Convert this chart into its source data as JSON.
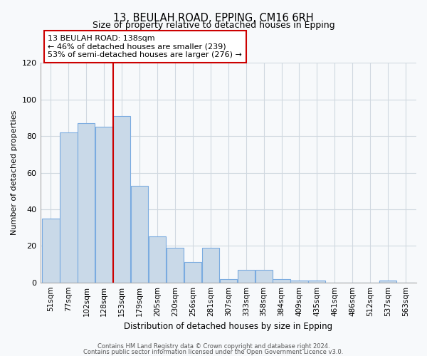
{
  "title": "13, BEULAH ROAD, EPPING, CM16 6RH",
  "subtitle": "Size of property relative to detached houses in Epping",
  "xlabel": "Distribution of detached houses by size in Epping",
  "ylabel": "Number of detached properties",
  "bar_labels": [
    "51sqm",
    "77sqm",
    "102sqm",
    "128sqm",
    "153sqm",
    "179sqm",
    "205sqm",
    "230sqm",
    "256sqm",
    "281sqm",
    "307sqm",
    "333sqm",
    "358sqm",
    "384sqm",
    "409sqm",
    "435sqm",
    "461sqm",
    "486sqm",
    "512sqm",
    "537sqm",
    "563sqm"
  ],
  "bar_heights": [
    35,
    82,
    87,
    85,
    91,
    53,
    25,
    19,
    11,
    19,
    2,
    7,
    7,
    2,
    1,
    1,
    0,
    0,
    0,
    1,
    0
  ],
  "bar_color": "#c9d9e8",
  "bar_edge_color": "#7aabe0",
  "vline_x": 3.5,
  "vline_color": "#cc0000",
  "annotation_title": "13 BEULAH ROAD: 138sqm",
  "annotation_line1": "← 46% of detached houses are smaller (239)",
  "annotation_line2": "53% of semi-detached houses are larger (276) →",
  "ylim": [
    0,
    120
  ],
  "yticks": [
    0,
    20,
    40,
    60,
    80,
    100,
    120
  ],
  "footer1": "Contains HM Land Registry data © Crown copyright and database right 2024.",
  "footer2": "Contains public sector information licensed under the Open Government Licence v3.0.",
  "background_color": "#f7f9fb",
  "grid_color": "#d0d8e0"
}
